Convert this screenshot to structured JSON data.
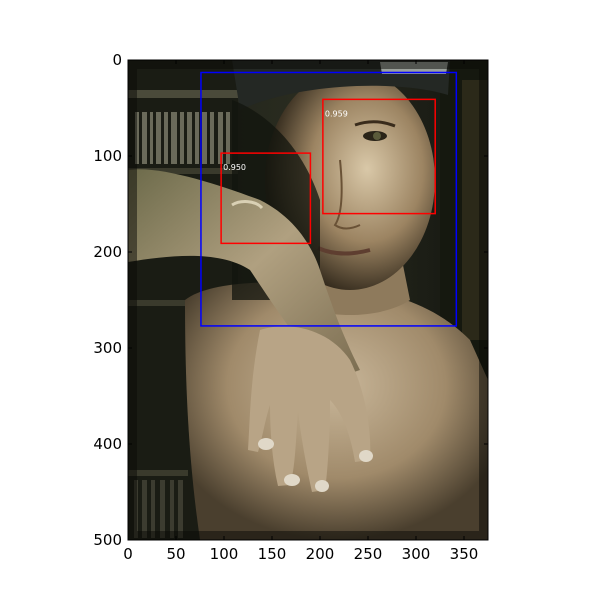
{
  "plot": {
    "x_range": [
      0,
      375
    ],
    "y_range": [
      0,
      500
    ],
    "y_inverted": true,
    "x_ticks": [
      "0",
      "50",
      "100",
      "150",
      "200",
      "250",
      "300",
      "350"
    ],
    "y_ticks": [
      "0",
      "100",
      "200",
      "300",
      "400",
      "500"
    ],
    "x_tick_values": [
      0,
      50,
      100,
      150,
      200,
      250,
      300,
      350
    ],
    "y_tick_values": [
      0,
      100,
      200,
      300,
      400,
      500
    ]
  },
  "photo": {
    "subject": "shirtless young man in a dark cap, forearm raised across his face, bookshelf in the background"
  },
  "boxes": [
    {
      "kind": "person",
      "color": "#0000ff",
      "x0": 76,
      "y0": 13,
      "x1": 342,
      "y1": 277,
      "score": ""
    },
    {
      "kind": "face",
      "color": "#ff0000",
      "x0": 203,
      "y0": 41,
      "x1": 320,
      "y1": 160,
      "score": "0.959"
    },
    {
      "kind": "face",
      "color": "#ff0000",
      "x0": 97,
      "y0": 97,
      "x1": 190,
      "y1": 191,
      "score": "0.950"
    }
  ],
  "colors": {
    "axis": "#000000",
    "tick_text": "#000000",
    "score_text": "#ffffff"
  }
}
